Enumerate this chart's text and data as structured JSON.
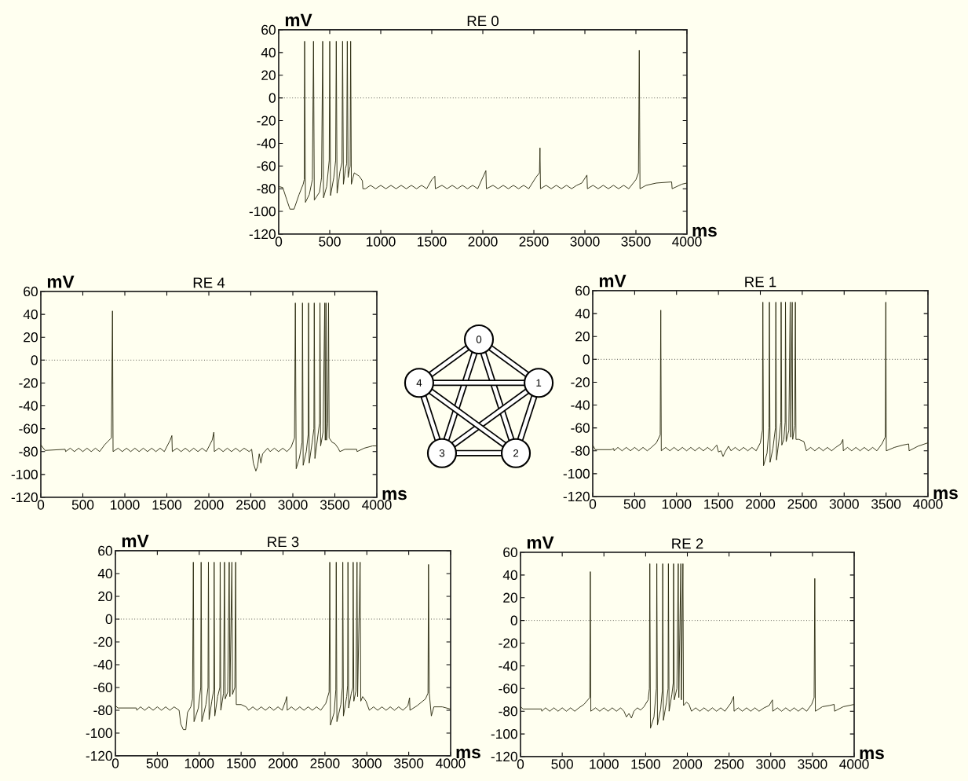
{
  "chart_data": [
    {
      "type": "line",
      "title": "RE 0",
      "xlabel": "ms",
      "ylabel": "mV",
      "color": "#2b2b10",
      "xlim": [
        0,
        4000
      ],
      "ylim": [
        -120,
        60
      ],
      "xticks": [
        0,
        500,
        1000,
        1500,
        2000,
        2500,
        3000,
        3500,
        4000
      ],
      "yticks": [
        -120,
        -100,
        -80,
        -60,
        -40,
        -20,
        0,
        20,
        40,
        60
      ],
      "ref_lines": [
        {
          "axis": "y",
          "value": 0,
          "line_style": "dotted"
        }
      ],
      "x": [
        0,
        40,
        80,
        110,
        150,
        200,
        240,
        250,
        254,
        262,
        300,
        330,
        341,
        349,
        400,
        420,
        431,
        439,
        470,
        495,
        500,
        508,
        540,
        558,
        564,
        572,
        600,
        620,
        626,
        634,
        655,
        666,
        672,
        680,
        700,
        705,
        712,
        740,
        790,
        820,
        825,
        850,
        900,
        950,
        1000,
        1050,
        1100,
        1150,
        1200,
        1250,
        1300,
        1350,
        1400,
        1450,
        1500,
        1530,
        1535,
        1600,
        1650,
        1700,
        1750,
        1800,
        1850,
        1900,
        1950,
        2000,
        2030,
        2035,
        2100,
        2150,
        2200,
        2250,
        2300,
        2350,
        2400,
        2450,
        2520,
        2555,
        2560,
        2565,
        2620,
        2670,
        2720,
        2770,
        2820,
        2870,
        2920,
        2970,
        3020,
        3025,
        3080,
        3130,
        3180,
        3230,
        3280,
        3330,
        3380,
        3430,
        3500,
        3525,
        3533,
        3540,
        3600,
        3700,
        3850,
        3855,
        3950,
        4000
      ],
      "values": [
        -78,
        -79,
        -90,
        -98,
        -98,
        -85,
        -76,
        -72,
        50,
        -92,
        -85,
        -72,
        50,
        -90,
        -83,
        -70,
        50,
        -88,
        -78,
        -55,
        50,
        -86,
        -70,
        -55,
        50,
        -84,
        -65,
        -57,
        50,
        -76,
        -62,
        -58,
        50,
        -70,
        -60,
        50,
        -76,
        -66,
        -69,
        -73,
        -80,
        -80,
        -77,
        -80,
        -77,
        -80,
        -77,
        -80,
        -77,
        -80,
        -77,
        -80,
        -77,
        -80,
        -72,
        -69,
        -80,
        -77,
        -80,
        -77,
        -80,
        -77,
        -80,
        -77,
        -80,
        -70,
        -64,
        -80,
        -77,
        -80,
        -77,
        -80,
        -77,
        -80,
        -77,
        -80,
        -70,
        -66,
        -44,
        -80,
        -77,
        -80,
        -77,
        -80,
        -77,
        -80,
        -77,
        -75,
        -68,
        -80,
        -77,
        -80,
        -77,
        -80,
        -77,
        -80,
        -77,
        -80,
        -72,
        -66,
        42,
        -80,
        -77,
        -75,
        -74,
        -80,
        -76,
        -75
      ]
    },
    {
      "type": "line",
      "title": "RE 4",
      "xlabel": "ms",
      "ylabel": "mV",
      "color": "#2b2b10",
      "xlim": [
        0,
        4000
      ],
      "ylim": [
        -120,
        60
      ],
      "xticks": [
        0,
        500,
        1000,
        1500,
        2000,
        2500,
        3000,
        3500,
        4000
      ],
      "yticks": [
        -120,
        -100,
        -80,
        -60,
        -40,
        -20,
        0,
        20,
        40,
        60
      ],
      "ref_lines": [
        {
          "axis": "y",
          "value": 0,
          "line_style": "dotted"
        }
      ],
      "x": [
        0,
        50,
        290,
        295,
        350,
        400,
        450,
        500,
        550,
        600,
        650,
        700,
        760,
        840,
        853,
        860,
        920,
        970,
        1020,
        1070,
        1120,
        1170,
        1220,
        1270,
        1320,
        1370,
        1420,
        1470,
        1540,
        1560,
        1565,
        1620,
        1670,
        1720,
        1770,
        1820,
        1870,
        1920,
        1970,
        2040,
        2060,
        2065,
        2120,
        2170,
        2220,
        2270,
        2320,
        2370,
        2420,
        2480,
        2510,
        2530,
        2560,
        2580,
        2600,
        2620,
        2640,
        2700,
        2730,
        2780,
        2830,
        2880,
        2930,
        2980,
        3020,
        3030,
        3040,
        3080,
        3110,
        3115,
        3123,
        3160,
        3183,
        3187,
        3195,
        3230,
        3251,
        3255,
        3263,
        3300,
        3318,
        3323,
        3331,
        3360,
        3380,
        3386,
        3395,
        3401,
        3415,
        3425,
        3432,
        3470,
        3500,
        3540,
        3560,
        3620,
        3760,
        3765,
        3850,
        3950,
        4000
      ],
      "values": [
        -74,
        -79,
        -78,
        -80,
        -77,
        -80,
        -77,
        -80,
        -77,
        -80,
        -77,
        -80,
        -74,
        -68,
        43,
        -80,
        -77,
        -80,
        -77,
        -80,
        -77,
        -80,
        -77,
        -80,
        -77,
        -80,
        -77,
        -80,
        -70,
        -66,
        -80,
        -77,
        -80,
        -77,
        -80,
        -77,
        -80,
        -77,
        -80,
        -70,
        -63,
        -80,
        -77,
        -80,
        -77,
        -80,
        -77,
        -80,
        -77,
        -80,
        -78,
        -90,
        -97,
        -93,
        -82,
        -90,
        -82,
        -77,
        -80,
        -77,
        -80,
        -77,
        -80,
        -76,
        -68,
        50,
        -95,
        -85,
        -72,
        50,
        -92,
        -80,
        -65,
        50,
        -90,
        -72,
        -60,
        50,
        -86,
        -65,
        -55,
        50,
        -75,
        -63,
        50,
        -70,
        50,
        -70,
        -55,
        50,
        -68,
        -72,
        -73,
        -77,
        -80,
        -78,
        -78,
        -80,
        -77,
        -75,
        -75
      ]
    },
    {
      "type": "other",
      "categories": [
        "0",
        "1",
        "2",
        "3",
        "4"
      ]
    },
    {
      "type": "line",
      "title": "RE 1",
      "xlabel": "ms",
      "ylabel": "mV",
      "color": "#2b2b10",
      "xlim": [
        0,
        4000
      ],
      "ylim": [
        -120,
        60
      ],
      "xticks": [
        0,
        500,
        1000,
        1500,
        2000,
        2500,
        3000,
        3500,
        4000
      ],
      "yticks": [
        -120,
        -100,
        -80,
        -60,
        -40,
        -20,
        0,
        20,
        40,
        60
      ],
      "ref_lines": [
        {
          "axis": "y",
          "value": 0,
          "line_style": "dotted"
        }
      ],
      "x": [
        0,
        30,
        220,
        250,
        255,
        300,
        350,
        400,
        450,
        500,
        550,
        600,
        650,
        700,
        760,
        805,
        812,
        818,
        870,
        920,
        970,
        1020,
        1070,
        1120,
        1170,
        1220,
        1270,
        1320,
        1370,
        1420,
        1480,
        1500,
        1530,
        1555,
        1580,
        1620,
        1650,
        1700,
        1750,
        1800,
        1850,
        1900,
        1950,
        2000,
        2025,
        2030,
        2038,
        2080,
        2103,
        2108,
        2116,
        2150,
        2180,
        2185,
        2193,
        2220,
        2244,
        2248,
        2256,
        2280,
        2296,
        2300,
        2308,
        2340,
        2356,
        2363,
        2380,
        2386,
        2410,
        2418,
        2425,
        2460,
        2520,
        2550,
        2600,
        2650,
        2700,
        2750,
        2800,
        2850,
        2900,
        2960,
        2985,
        2990,
        3040,
        3090,
        3140,
        3190,
        3240,
        3290,
        3340,
        3390,
        3450,
        3490,
        3497,
        3503,
        3600,
        3700,
        3770,
        3775,
        3880,
        4000
      ],
      "values": [
        -75,
        -79,
        -79,
        -78,
        -80,
        -77,
        -80,
        -77,
        -80,
        -77,
        -80,
        -77,
        -80,
        -77,
        -73,
        -66,
        43,
        -80,
        -77,
        -80,
        -77,
        -80,
        -77,
        -80,
        -77,
        -80,
        -77,
        -80,
        -77,
        -80,
        -75,
        -81,
        -80,
        -85,
        -81,
        -76,
        -80,
        -77,
        -80,
        -77,
        -80,
        -77,
        -80,
        -73,
        -62,
        50,
        -93,
        -82,
        -60,
        50,
        -90,
        -78,
        -60,
        50,
        -88,
        -72,
        -55,
        50,
        -75,
        -70,
        -55,
        50,
        -72,
        -62,
        50,
        -68,
        50,
        -70,
        -58,
        50,
        -70,
        -70,
        -72,
        -80,
        -77,
        -80,
        -77,
        -80,
        -77,
        -80,
        -77,
        -74,
        -70,
        -80,
        -77,
        -80,
        -77,
        -80,
        -77,
        -80,
        -77,
        -80,
        -74,
        -68,
        50,
        -80,
        -77,
        -75,
        -74,
        -80,
        -76,
        -73
      ]
    },
    {
      "type": "line",
      "title": "RE 3",
      "xlabel": "ms",
      "ylabel": "mV",
      "color": "#2b2b10",
      "xlim": [
        0,
        4000
      ],
      "ylim": [
        -120,
        60
      ],
      "xticks": [
        0,
        500,
        1000,
        1500,
        2000,
        2500,
        3000,
        3500,
        4000
      ],
      "yticks": [
        -120,
        -100,
        -80,
        -60,
        -40,
        -20,
        0,
        20,
        40,
        60
      ],
      "ref_lines": [
        {
          "axis": "y",
          "value": 0,
          "line_style": "dotted"
        }
      ],
      "x": [
        0,
        30,
        250,
        255,
        300,
        350,
        400,
        450,
        500,
        550,
        600,
        650,
        700,
        740,
        760,
        780,
        810,
        840,
        860,
        900,
        920,
        930,
        938,
        990,
        1018,
        1023,
        1031,
        1080,
        1105,
        1110,
        1118,
        1150,
        1174,
        1178,
        1186,
        1220,
        1246,
        1250,
        1258,
        1290,
        1302,
        1310,
        1340,
        1358,
        1366,
        1390,
        1397,
        1425,
        1435,
        1442,
        1500,
        1560,
        1590,
        1640,
        1690,
        1740,
        1790,
        1840,
        1890,
        1940,
        1990,
        2030,
        2045,
        2050,
        2100,
        2150,
        2200,
        2250,
        2300,
        2350,
        2400,
        2450,
        2510,
        2550,
        2558,
        2566,
        2610,
        2630,
        2635,
        2643,
        2690,
        2708,
        2713,
        2721,
        2760,
        2771,
        2775,
        2783,
        2815,
        2833,
        2837,
        2845,
        2870,
        2883,
        2890,
        2920,
        2928,
        2950,
        2990,
        3030,
        3080,
        3130,
        3180,
        3230,
        3280,
        3330,
        3380,
        3430,
        3490,
        3510,
        3515,
        3600,
        3700,
        3730,
        3736,
        3745,
        3770,
        3800,
        3900,
        4000
      ],
      "values": [
        -76,
        -78,
        -78,
        -80,
        -77,
        -80,
        -77,
        -80,
        -77,
        -80,
        -77,
        -80,
        -77,
        -79,
        -80,
        -92,
        -97,
        -97,
        -82,
        -77,
        -70,
        50,
        -90,
        -78,
        -60,
        50,
        -90,
        -75,
        -60,
        50,
        -88,
        -72,
        -62,
        50,
        -85,
        -68,
        -60,
        50,
        -80,
        -65,
        50,
        -70,
        -64,
        50,
        -68,
        50,
        -66,
        -60,
        50,
        -75,
        -75,
        -77,
        -80,
        -77,
        -80,
        -77,
        -80,
        -77,
        -80,
        -77,
        -80,
        -72,
        -68,
        -80,
        -77,
        -80,
        -77,
        -80,
        -77,
        -80,
        -77,
        -80,
        -74,
        -64,
        50,
        -93,
        -82,
        -62,
        50,
        -90,
        -75,
        -60,
        50,
        -85,
        -68,
        -58,
        50,
        -78,
        -65,
        -60,
        50,
        -72,
        -63,
        50,
        -68,
        50,
        -72,
        -68,
        -72,
        -80,
        -77,
        -80,
        -77,
        -80,
        -77,
        -80,
        -77,
        -80,
        -76,
        -69,
        -80,
        -76,
        -70,
        -65,
        48,
        -65,
        -85,
        -77,
        -77,
        -79
      ]
    },
    {
      "type": "line",
      "title": "RE 2",
      "xlabel": "ms",
      "ylabel": "mV",
      "color": "#2b2b10",
      "xlim": [
        0,
        4000
      ],
      "ylim": [
        -120,
        60
      ],
      "xticks": [
        0,
        500,
        1000,
        1500,
        2000,
        2500,
        3000,
        3500,
        4000
      ],
      "yticks": [
        -120,
        -100,
        -80,
        -60,
        -40,
        -20,
        0,
        20,
        40,
        60
      ],
      "ref_lines": [
        {
          "axis": "y",
          "value": 0,
          "line_style": "dotted"
        }
      ],
      "x": [
        0,
        30,
        250,
        255,
        300,
        350,
        400,
        450,
        500,
        550,
        600,
        650,
        700,
        760,
        830,
        837,
        843,
        900,
        950,
        1000,
        1050,
        1100,
        1150,
        1200,
        1240,
        1270,
        1300,
        1330,
        1360,
        1400,
        1440,
        1480,
        1530,
        1545,
        1550,
        1558,
        1600,
        1629,
        1634,
        1642,
        1680,
        1700,
        1705,
        1713,
        1750,
        1769,
        1773,
        1781,
        1815,
        1831,
        1835,
        1843,
        1875,
        1891,
        1898,
        1922,
        1929,
        1947,
        1954,
        1990,
        2020,
        2050,
        2100,
        2150,
        2200,
        2250,
        2300,
        2350,
        2400,
        2450,
        2520,
        2555,
        2560,
        2610,
        2660,
        2710,
        2760,
        2810,
        2860,
        2920,
        2980,
        3020,
        3025,
        3080,
        3130,
        3180,
        3230,
        3280,
        3330,
        3380,
        3430,
        3490,
        3520,
        3528,
        3535,
        3620,
        3700,
        3760,
        3765,
        3870,
        4000
      ],
      "values": [
        -76,
        -78,
        -78,
        -80,
        -77,
        -80,
        -77,
        -80,
        -77,
        -80,
        -77,
        -80,
        -77,
        -74,
        -68,
        43,
        -80,
        -77,
        -80,
        -77,
        -80,
        -77,
        -80,
        -77,
        -80,
        -85,
        -82,
        -86,
        -80,
        -77,
        -79,
        -76,
        -70,
        -60,
        50,
        -95,
        -85,
        -60,
        50,
        -92,
        -78,
        -62,
        50,
        -88,
        -72,
        -60,
        50,
        -80,
        -65,
        -55,
        50,
        -70,
        -60,
        50,
        -68,
        50,
        -70,
        50,
        -75,
        -72,
        -74,
        -80,
        -77,
        -80,
        -77,
        -80,
        -77,
        -80,
        -77,
        -80,
        -73,
        -67,
        -80,
        -77,
        -80,
        -77,
        -80,
        -77,
        -80,
        -77,
        -75,
        -70,
        -80,
        -77,
        -80,
        -77,
        -80,
        -77,
        -80,
        -77,
        -80,
        -74,
        -68,
        37,
        -80,
        -76,
        -75,
        -74,
        -80,
        -76,
        -74
      ]
    }
  ]
}
